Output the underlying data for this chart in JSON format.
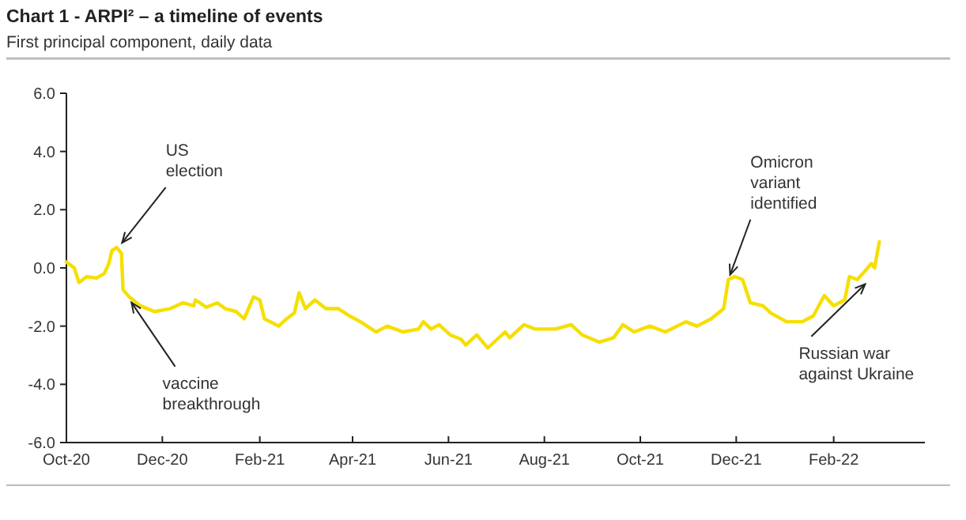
{
  "chart_data": {
    "type": "line",
    "title": "Chart 1 - ARPI² – a timeline of events",
    "subtitle": "First principal component, daily data",
    "x": [
      "2020-10-01",
      "2020-10-06",
      "2020-10-09",
      "2020-10-14",
      "2020-10-20",
      "2020-10-25",
      "2020-10-28",
      "2020-10-30",
      "2020-11-02",
      "2020-11-05",
      "2020-11-06",
      "2020-11-10",
      "2020-11-17",
      "2020-11-26",
      "2020-12-06",
      "2020-12-14",
      "2020-12-21",
      "2020-12-22",
      "2020-12-29",
      "2021-01-05",
      "2021-01-10",
      "2021-01-17",
      "2021-01-22",
      "2021-01-28",
      "2021-02-01",
      "2021-02-04",
      "2021-02-13",
      "2021-02-18",
      "2021-02-23",
      "2021-02-26",
      "2021-03-02",
      "2021-03-08",
      "2021-03-15",
      "2021-03-23",
      "2021-03-30",
      "2021-04-06",
      "2021-04-16",
      "2021-04-23",
      "2021-05-03",
      "2021-05-13",
      "2021-05-16",
      "2021-05-21",
      "2021-05-26",
      "2021-06-02",
      "2021-06-09",
      "2021-06-12",
      "2021-06-19",
      "2021-06-26",
      "2021-07-02",
      "2021-07-07",
      "2021-07-10",
      "2021-07-19",
      "2021-07-26",
      "2021-08-08",
      "2021-08-18",
      "2021-08-25",
      "2021-09-05",
      "2021-09-14",
      "2021-09-20",
      "2021-09-27",
      "2021-10-07",
      "2021-10-17",
      "2021-10-30",
      "2021-11-06",
      "2021-11-15",
      "2021-11-23",
      "2021-11-26",
      "2021-11-30",
      "2021-12-05",
      "2021-12-10",
      "2021-12-18",
      "2021-12-23",
      "2022-01-02",
      "2022-01-12",
      "2022-01-19",
      "2022-01-26",
      "2022-02-01",
      "2022-02-08",
      "2022-02-11",
      "2022-02-16",
      "2022-02-21",
      "2022-02-25",
      "2022-02-27",
      "2022-03-02"
    ],
    "series": [
      {
        "color": "#f5df00",
        "values": [
          0.2,
          0,
          -0.5,
          -0.3,
          -0.35,
          -0.2,
          0.15,
          0.6,
          0.7,
          0.5,
          -0.75,
          -1.0,
          -1.3,
          -1.5,
          -1.4,
          -1.2,
          -1.3,
          -1.1,
          -1.35,
          -1.2,
          -1.4,
          -1.5,
          -1.75,
          -1.0,
          -1.1,
          -1.75,
          -2.0,
          -1.75,
          -1.55,
          -0.85,
          -1.4,
          -1.1,
          -1.4,
          -1.4,
          -1.65,
          -1.85,
          -2.2,
          -2.0,
          -2.2,
          -2.1,
          -1.85,
          -2.1,
          -1.95,
          -2.3,
          -2.45,
          -2.65,
          -2.3,
          -2.75,
          -2.45,
          -2.2,
          -2.4,
          -1.95,
          -2.1,
          -2.1,
          -1.95,
          -2.3,
          -2.55,
          -2.4,
          -1.95,
          -2.2,
          -2.0,
          -2.2,
          -1.85,
          -2.0,
          -1.75,
          -1.4,
          -0.4,
          -0.3,
          -0.4,
          -1.2,
          -1.3,
          -1.55,
          -1.85,
          -1.85,
          -1.65,
          -0.95,
          -1.3,
          -1.1,
          -0.3,
          -0.4,
          -0.1,
          0.15,
          0,
          0.9
        ]
      }
    ],
    "xlim": [
      "2020-10-01",
      "2022-03-31"
    ],
    "xticks": [
      {
        "value": "2020-10-01",
        "label": "Oct-20"
      },
      {
        "value": "2020-12-01",
        "label": "Dec-20"
      },
      {
        "value": "2021-02-01",
        "label": "Feb-21"
      },
      {
        "value": "2021-04-01",
        "label": "Apr-21"
      },
      {
        "value": "2021-06-01",
        "label": "Jun-21"
      },
      {
        "value": "2021-08-01",
        "label": "Aug-21"
      },
      {
        "value": "2021-10-01",
        "label": "Oct-21"
      },
      {
        "value": "2021-12-01",
        "label": "Dec-21"
      },
      {
        "value": "2022-02-01",
        "label": "Feb-22"
      }
    ],
    "ylim": [
      -6,
      6
    ],
    "yticks": [
      {
        "value": -6,
        "label": "-6.0"
      },
      {
        "value": -4,
        "label": "-4.0"
      },
      {
        "value": -2,
        "label": "-2.0"
      },
      {
        "value": 0,
        "label": "0.0"
      },
      {
        "value": 2,
        "label": "2.0"
      },
      {
        "value": 4,
        "label": "4.0"
      },
      {
        "value": 6,
        "label": "6.0"
      }
    ],
    "grid": false,
    "annotations": [
      {
        "text": "US election",
        "x": "2020-11-03",
        "y": 0.7
      },
      {
        "text": "vaccine breakthrough",
        "x": "2020-11-09",
        "y": -1.0
      },
      {
        "text": "Omicron variant identified",
        "x": "2021-11-26",
        "y": -0.4
      },
      {
        "text": "Russian war against Ukraine",
        "x": "2022-02-24",
        "y": -0.4
      }
    ]
  }
}
